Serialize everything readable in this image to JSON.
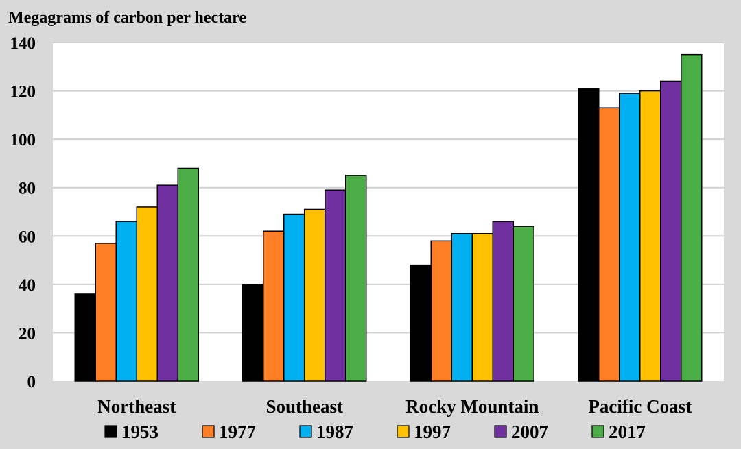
{
  "chart_data": {
    "type": "bar",
    "ylabel": "Megagrams of carbon per hectare",
    "xlabel": "",
    "ylim": [
      0,
      140
    ],
    "yticks": [
      "0",
      "20",
      "40",
      "60",
      "80",
      "100",
      "120",
      "140"
    ],
    "grid": true,
    "legend_position": "bottom",
    "categories": [
      "Northeast",
      "Southeast",
      "Rocky Mountain",
      "Pacific Coast"
    ],
    "series": [
      {
        "name": "1953",
        "color": "#000000",
        "values": [
          36,
          40,
          48,
          121
        ]
      },
      {
        "name": "1977",
        "color": "#ff7f27",
        "values": [
          57,
          62,
          58,
          113
        ]
      },
      {
        "name": "1987",
        "color": "#00b0f0",
        "values": [
          66,
          69,
          61,
          119
        ]
      },
      {
        "name": "1997",
        "color": "#ffc000",
        "values": [
          72,
          71,
          61,
          120
        ]
      },
      {
        "name": "2007",
        "color": "#7030a0",
        "values": [
          81,
          79,
          66,
          124
        ]
      },
      {
        "name": "2017",
        "color": "#4aad45",
        "values": [
          88,
          85,
          64,
          135
        ]
      }
    ]
  }
}
